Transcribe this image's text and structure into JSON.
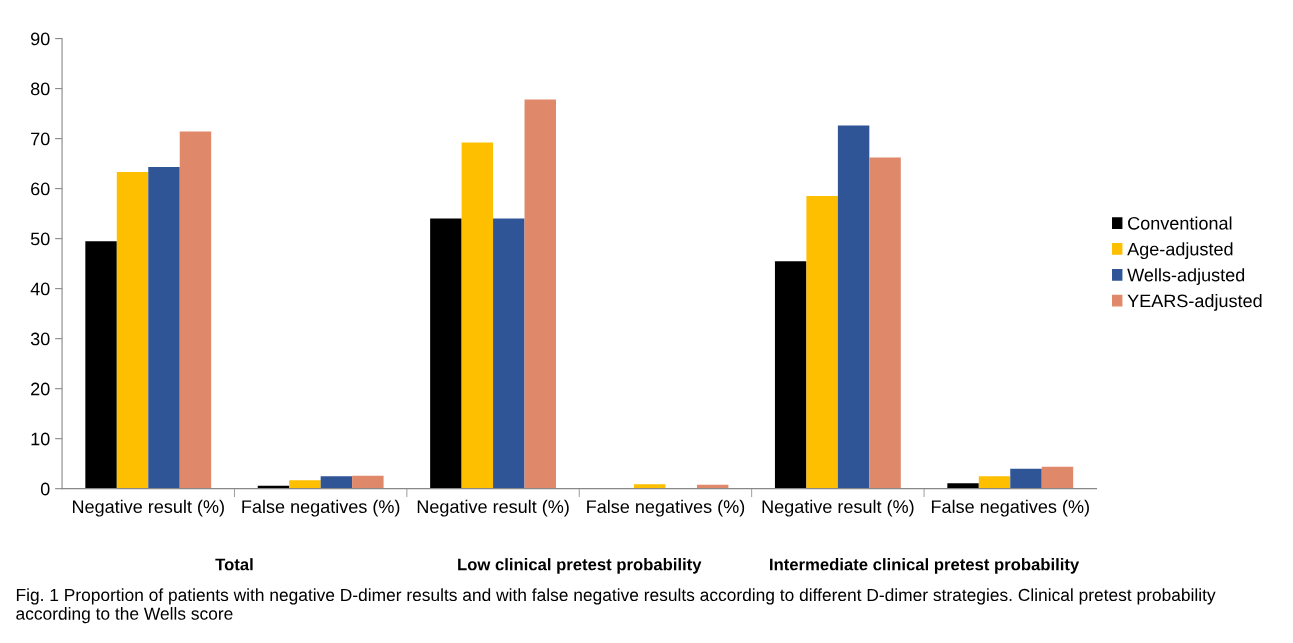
{
  "chart_data": {
    "type": "bar",
    "categories": [
      "Negative result (%)",
      "False negatives (%)",
      "Negative result (%)",
      "False negatives (%)",
      "Negative result (%)",
      "False negatives (%)"
    ],
    "series": [
      {
        "name": "Conventional",
        "color": "#000000",
        "values": [
          49.5,
          0.6,
          54,
          0,
          45.5,
          1.1
        ]
      },
      {
        "name": "Age-adjusted",
        "color": "#fdbf00",
        "values": [
          63.3,
          1.7,
          69.2,
          0.9,
          58.5,
          2.5
        ]
      },
      {
        "name": "Wells-adjusted",
        "color": "#2f5597",
        "values": [
          64.3,
          2.5,
          54,
          0,
          72.6,
          4.0
        ]
      },
      {
        "name": "YEARS-adjusted",
        "color": "#e0896a",
        "values": [
          71.4,
          2.6,
          77.8,
          0.8,
          66.2,
          4.4
        ]
      }
    ],
    "ylim": [
      0,
      90
    ],
    "yticks": [
      0,
      10,
      20,
      30,
      40,
      50,
      60,
      70,
      80,
      90
    ],
    "grid": false,
    "legend": "right",
    "annotations": [
      "Total",
      "Low clinical pretest probability",
      "Intermediate clinical pretest probability",
      "Fig. 1 Proportion of patients with negative D-dimer results and with false negative results according to different D-dimer strategies. Clinical pretest probability according to the Wells score"
    ]
  }
}
